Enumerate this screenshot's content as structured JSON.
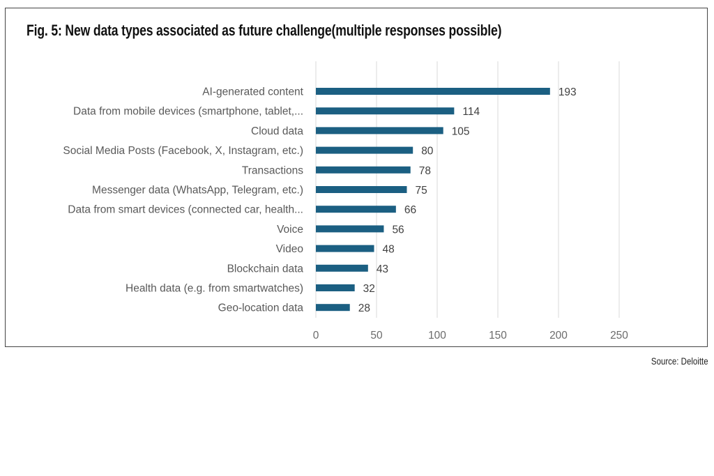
{
  "chart_data": {
    "type": "bar",
    "orientation": "horizontal",
    "title": "Fig. 5: New data types associated as future challenge(multiple responses possible)",
    "source": "Source: Deloitte",
    "categories": [
      "AI-generated content",
      "Data from mobile devices (smartphone, tablet,...",
      "Cloud data",
      "Social Media Posts (Facebook, X, Instagram, etc.)",
      "Transactions",
      "Messenger data (WhatsApp, Telegram, etc.)",
      "Data from smart devices (connected car, health...",
      "Voice",
      "Video",
      "Blockchain data",
      "Health data (e.g. from smartwatches)",
      "Geo-location data"
    ],
    "values": [
      193,
      114,
      105,
      80,
      78,
      75,
      66,
      56,
      48,
      43,
      32,
      28
    ],
    "xlim": [
      0,
      250
    ],
    "xticks": [
      "0",
      "50",
      "100",
      "150",
      "200",
      "250"
    ],
    "xtick_values": [
      0,
      50,
      100,
      150,
      200,
      250
    ],
    "grid": true,
    "bar_color": "#1b5f82",
    "xlabel": "",
    "ylabel": ""
  }
}
